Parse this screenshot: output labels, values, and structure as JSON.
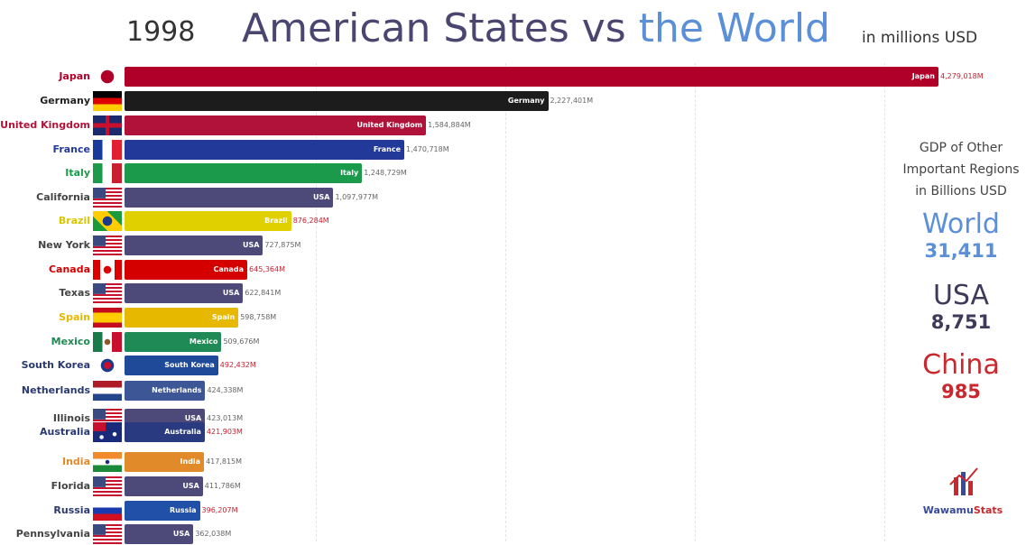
{
  "header": {
    "year": "1998",
    "title_part1": "American States vs ",
    "title_part2": "the World",
    "unit": "in millions USD"
  },
  "side_panel": {
    "heading_lines": [
      "GDP of Other",
      "Important Regions",
      "in Billions USD"
    ],
    "regions": [
      {
        "name": "World",
        "value": "31,411",
        "color": "#5b8fd8"
      },
      {
        "name": "USA",
        "value": "8,751",
        "color": "#3d3a5a"
      },
      {
        "name": "China",
        "value": "985",
        "color": "#c8282e"
      }
    ]
  },
  "logo": {
    "text_part1": "Wawamu",
    "text_part2": "Stats"
  },
  "chart_data": {
    "type": "bar",
    "orientation": "horizontal",
    "title": "American States vs the World",
    "subtitle": "1998",
    "unit": "in millions USD",
    "grid": true,
    "bars": [
      {
        "label": "Japan",
        "bar_label": "Japan",
        "value": 4279018,
        "value_text": "4,279,018M",
        "flag": "japan-flag-icon",
        "color": "#b0002a",
        "label_color": "#b0002a",
        "value_color": "#c8202e"
      },
      {
        "label": "Germany",
        "bar_label": "Germany",
        "value": 2227401,
        "value_text": "2,227,401M",
        "flag": "germany-flag-icon",
        "color": "#1c1c1c",
        "label_color": "#222",
        "value_color": "#666"
      },
      {
        "label": "United Kingdom",
        "bar_label": "United Kingdom",
        "value": 1584884,
        "value_text": "1,584,884M",
        "flag": "uk-flag-icon",
        "color": "#b0123a",
        "label_color": "#b0123a",
        "value_color": "#666"
      },
      {
        "label": "France",
        "bar_label": "France",
        "value": 1470718,
        "value_text": "1,470,718M",
        "flag": "france-flag-icon",
        "color": "#22399a",
        "label_color": "#22399a",
        "value_color": "#666"
      },
      {
        "label": "Italy",
        "bar_label": "Italy",
        "value": 1248729,
        "value_text": "1,248,729M",
        "flag": "italy-flag-icon",
        "color": "#1a9a4a",
        "label_color": "#1a9a4a",
        "value_color": "#666"
      },
      {
        "label": "California",
        "bar_label": "USA",
        "value": 1097977,
        "value_text": "1,097,977M",
        "flag": "usa-flag-icon",
        "color": "#4d4a7a",
        "label_color": "#444",
        "value_color": "#666"
      },
      {
        "label": "Brazil",
        "bar_label": "Brazil",
        "value": 876284,
        "value_text": "876,284M",
        "flag": "brazil-flag-icon",
        "color": "#e0d000",
        "label_color": "#d8c800",
        "value_color": "#c8202e"
      },
      {
        "label": "New York",
        "bar_label": "USA",
        "value": 727875,
        "value_text": "727,875M",
        "flag": "usa-flag-icon",
        "color": "#4d4a7a",
        "label_color": "#444",
        "value_color": "#666"
      },
      {
        "label": "Canada",
        "bar_label": "Canada",
        "value": 645364,
        "value_text": "645,364M",
        "flag": "canada-flag-icon",
        "color": "#d40000",
        "label_color": "#d40000",
        "value_color": "#c8202e"
      },
      {
        "label": "Texas",
        "bar_label": "USA",
        "value": 622841,
        "value_text": "622,841M",
        "flag": "usa-flag-icon",
        "color": "#4d4a7a",
        "label_color": "#444",
        "value_color": "#666"
      },
      {
        "label": "Spain",
        "bar_label": "Spain",
        "value": 598758,
        "value_text": "598,758M",
        "flag": "spain-flag-icon",
        "color": "#e6b800",
        "label_color": "#e6b800",
        "value_color": "#666"
      },
      {
        "label": "Mexico",
        "bar_label": "Mexico",
        "value": 509676,
        "value_text": "509,676M",
        "flag": "mexico-flag-icon",
        "color": "#1f8a55",
        "label_color": "#1f8a55",
        "value_color": "#666"
      },
      {
        "label": "South Korea",
        "bar_label": "South Korea",
        "value": 492432,
        "value_text": "492,432M",
        "flag": "south-korea-flag-icon",
        "color": "#1f4a9a",
        "label_color": "#2a3a70",
        "value_color": "#c8202e"
      },
      {
        "label": "Netherlands",
        "bar_label": "Netherlands",
        "value": 424338,
        "value_text": "424,338M",
        "flag": "netherlands-flag-icon",
        "color": "#3d5696",
        "label_color": "#2a3a70",
        "value_color": "#666"
      },
      {
        "label": "Illinois",
        "bar_label": "USA",
        "value": 423013,
        "value_text": "423,013M",
        "flag": "usa-flag-icon",
        "color": "#4d4a7a",
        "label_color": "#444",
        "value_color": "#666"
      },
      {
        "label": "Australia",
        "bar_label": "Australia",
        "value": 421903,
        "value_text": "421,903M",
        "flag": "australia-flag-icon",
        "color": "#2a3a80",
        "label_color": "#2a3a70",
        "value_color": "#c8202e"
      },
      {
        "label": "India",
        "bar_label": "India",
        "value": 417815,
        "value_text": "417,815M",
        "flag": "india-flag-icon",
        "color": "#e08a2a",
        "label_color": "#e08a2a",
        "value_color": "#666"
      },
      {
        "label": "Florida",
        "bar_label": "USA",
        "value": 411786,
        "value_text": "411,786M",
        "flag": "usa-flag-icon",
        "color": "#4d4a7a",
        "label_color": "#444",
        "value_color": "#666"
      },
      {
        "label": "Russia",
        "bar_label": "Russia",
        "value": 396207,
        "value_text": "396,207M",
        "flag": "russia-flag-icon",
        "color": "#2050a8",
        "label_color": "#2a3a70",
        "value_color": "#c8202e"
      },
      {
        "label": "Pennsylvania",
        "bar_label": "USA",
        "value": 362038,
        "value_text": "362,038M",
        "flag": "usa-flag-icon",
        "color": "#4d4a7a",
        "label_color": "#444",
        "value_color": "#666"
      }
    ]
  }
}
